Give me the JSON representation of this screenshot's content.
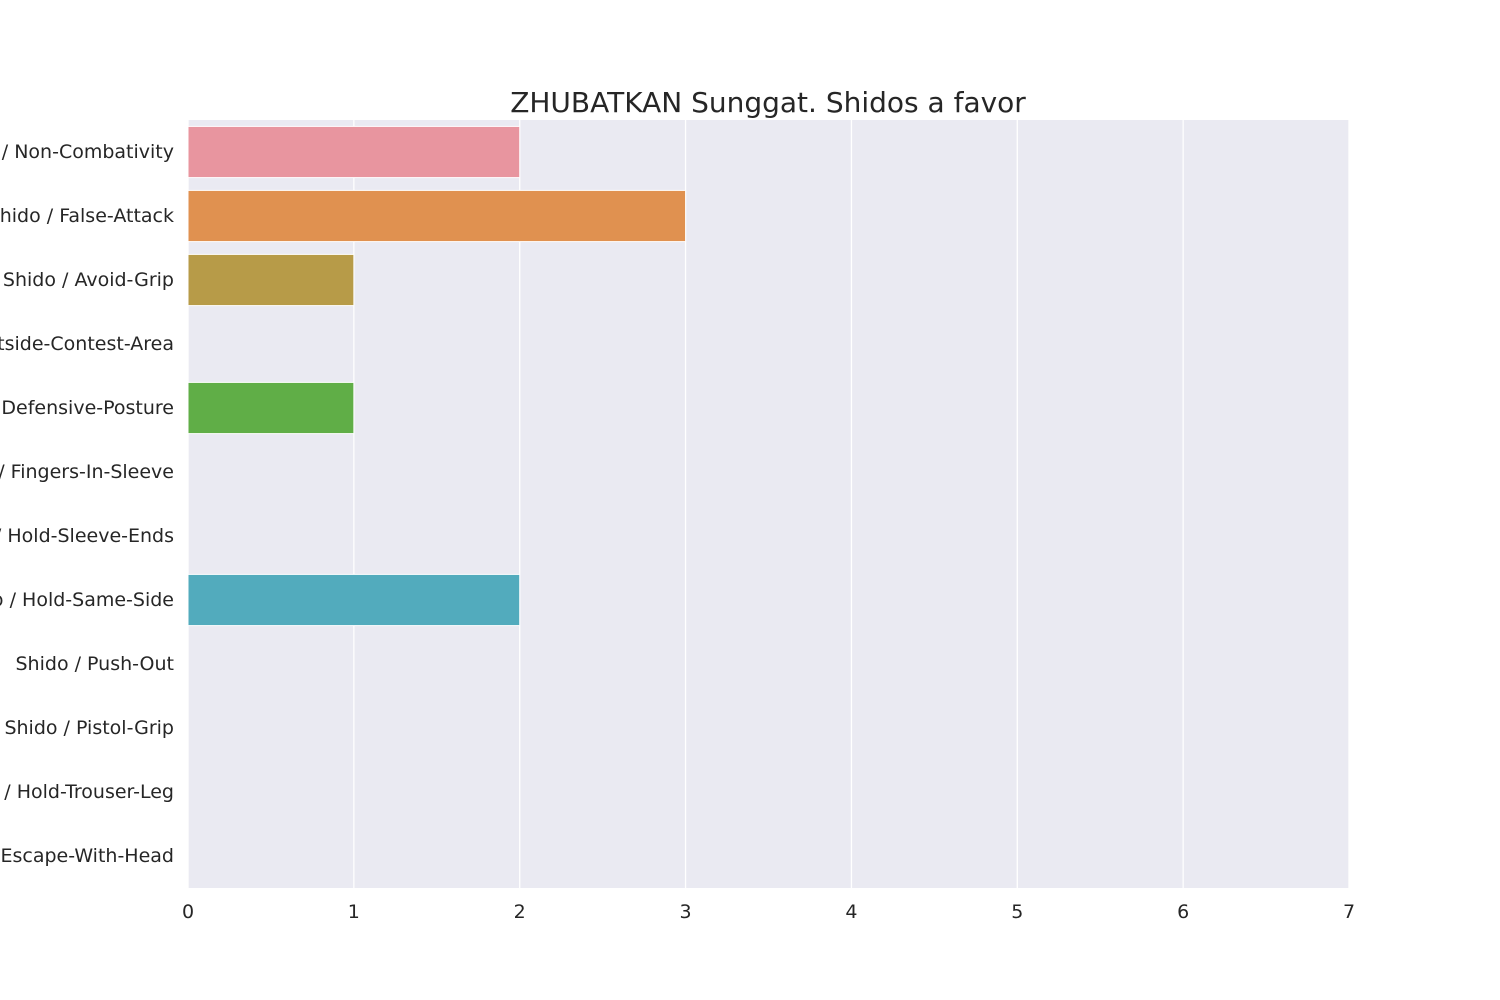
{
  "chart_data": {
    "type": "bar",
    "orientation": "horizontal",
    "title": "ZHUBATKAN Sunggat. Shidos a favor",
    "xlabel": "",
    "ylabel": "",
    "xlim": [
      0,
      7
    ],
    "x_ticks": [
      0,
      1,
      2,
      3,
      4,
      5,
      6,
      7
    ],
    "grid": true,
    "categories": [
      "Shido / Non-Combativity",
      "Shido / False-Attack",
      "Shido / Avoid-Grip",
      "Shido / Outside-Contest-Area",
      "Shido / Defensive-Posture",
      "Shido / Fingers-In-Sleeve",
      "Shido / Hold-Sleeve-Ends",
      "Shido / Hold-Same-Side",
      "Shido / Push-Out",
      "Shido / Pistol-Grip",
      "Shido / Hold-Trouser-Leg",
      "Shido / Escape-With-Head"
    ],
    "values": [
      2,
      3,
      1,
      0,
      1,
      0,
      0,
      2,
      0,
      0,
      0,
      0
    ],
    "colors": [
      "#e8959f",
      "#e09150",
      "#b79b48",
      "#95a44a",
      "#60ae47",
      "#55ab84",
      "#56a99c",
      "#52abbd",
      "#5ea6dc",
      "#a89be8",
      "#e085dd",
      "#e78fc5"
    ],
    "plot_background": "#eaeaf2",
    "grid_color": "#ffffff"
  }
}
